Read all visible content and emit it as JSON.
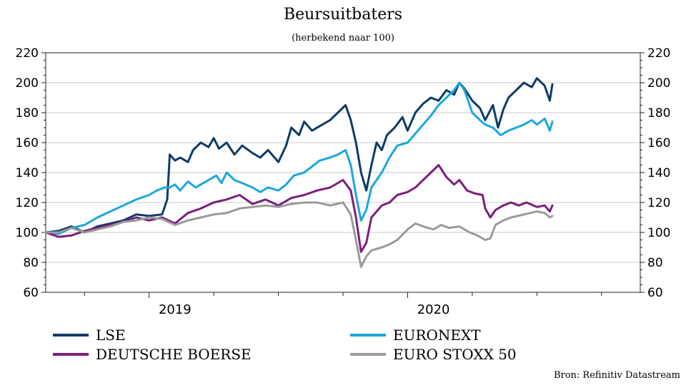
{
  "chart_data": {
    "type": "line",
    "title": "Beursuitbaters",
    "subtitle": "(herbekend naar 100)",
    "ylim": [
      60,
      220
    ],
    "yticks": [
      60,
      80,
      100,
      120,
      140,
      160,
      180,
      200,
      220
    ],
    "xlim": [
      2018.6,
      2020.9
    ],
    "xticks": [
      {
        "label": "2019",
        "x": 2019.0
      },
      {
        "label": "2020",
        "x": 2020.0
      }
    ],
    "x_minor": [
      2018.75,
      2019.0,
      2019.25,
      2019.5,
      2019.75,
      2020.0,
      2020.25,
      2020.5,
      2020.75
    ],
    "grid": true,
    "legend_position": "bottom",
    "source": "Bron: Refinitiv Datastream",
    "series": [
      {
        "name": "LSE",
        "color": "#0d3b66",
        "points": [
          [
            2018.6,
            100
          ],
          [
            2018.65,
            101
          ],
          [
            2018.7,
            104
          ],
          [
            2018.75,
            100
          ],
          [
            2018.8,
            104
          ],
          [
            2018.85,
            106
          ],
          [
            2018.9,
            108
          ],
          [
            2018.95,
            112
          ],
          [
            2019.0,
            111
          ],
          [
            2019.05,
            112
          ],
          [
            2019.07,
            122
          ],
          [
            2019.08,
            152
          ],
          [
            2019.1,
            148
          ],
          [
            2019.12,
            150
          ],
          [
            2019.15,
            147
          ],
          [
            2019.17,
            155
          ],
          [
            2019.2,
            160
          ],
          [
            2019.23,
            157
          ],
          [
            2019.25,
            163
          ],
          [
            2019.27,
            156
          ],
          [
            2019.3,
            160
          ],
          [
            2019.33,
            152
          ],
          [
            2019.36,
            158
          ],
          [
            2019.4,
            153
          ],
          [
            2019.43,
            150
          ],
          [
            2019.46,
            155
          ],
          [
            2019.5,
            147
          ],
          [
            2019.53,
            158
          ],
          [
            2019.55,
            170
          ],
          [
            2019.58,
            165
          ],
          [
            2019.6,
            174
          ],
          [
            2019.63,
            168
          ],
          [
            2019.66,
            171
          ],
          [
            2019.7,
            175
          ],
          [
            2019.73,
            180
          ],
          [
            2019.76,
            185
          ],
          [
            2019.78,
            175
          ],
          [
            2019.8,
            160
          ],
          [
            2019.82,
            140
          ],
          [
            2019.84,
            128
          ],
          [
            2019.86,
            145
          ],
          [
            2019.88,
            160
          ],
          [
            2019.9,
            155
          ],
          [
            2019.92,
            165
          ],
          [
            2019.95,
            170
          ],
          [
            2019.98,
            177
          ],
          [
            2020.0,
            168
          ],
          [
            2020.03,
            180
          ],
          [
            2020.06,
            186
          ],
          [
            2020.09,
            190
          ],
          [
            2020.12,
            188
          ],
          [
            2020.15,
            195
          ],
          [
            2020.18,
            192
          ],
          [
            2020.2,
            200
          ],
          [
            2020.22,
            196
          ],
          [
            2020.25,
            188
          ],
          [
            2020.28,
            183
          ],
          [
            2020.3,
            175
          ],
          [
            2020.33,
            185
          ],
          [
            2020.35,
            170
          ],
          [
            2020.37,
            182
          ],
          [
            2020.39,
            190
          ],
          [
            2020.42,
            195
          ],
          [
            2020.45,
            200
          ],
          [
            2020.48,
            197
          ],
          [
            2020.5,
            203
          ],
          [
            2020.53,
            198
          ],
          [
            2020.55,
            188
          ],
          [
            2020.56,
            199
          ]
        ]
      },
      {
        "name": "EURONEXT",
        "color": "#1aa7dd",
        "points": [
          [
            2018.6,
            100
          ],
          [
            2018.65,
            99
          ],
          [
            2018.7,
            103
          ],
          [
            2018.75,
            105
          ],
          [
            2018.8,
            110
          ],
          [
            2018.85,
            114
          ],
          [
            2018.9,
            118
          ],
          [
            2018.95,
            122
          ],
          [
            2019.0,
            125
          ],
          [
            2019.03,
            128
          ],
          [
            2019.06,
            130
          ],
          [
            2019.08,
            130
          ],
          [
            2019.1,
            132
          ],
          [
            2019.12,
            128
          ],
          [
            2019.15,
            134
          ],
          [
            2019.18,
            130
          ],
          [
            2019.2,
            132
          ],
          [
            2019.23,
            135
          ],
          [
            2019.26,
            138
          ],
          [
            2019.28,
            133
          ],
          [
            2019.3,
            140
          ],
          [
            2019.33,
            135
          ],
          [
            2019.36,
            133
          ],
          [
            2019.4,
            130
          ],
          [
            2019.43,
            127
          ],
          [
            2019.46,
            130
          ],
          [
            2019.5,
            128
          ],
          [
            2019.53,
            132
          ],
          [
            2019.56,
            138
          ],
          [
            2019.6,
            140
          ],
          [
            2019.63,
            144
          ],
          [
            2019.66,
            148
          ],
          [
            2019.7,
            150
          ],
          [
            2019.73,
            152
          ],
          [
            2019.76,
            155
          ],
          [
            2019.78,
            145
          ],
          [
            2019.8,
            125
          ],
          [
            2019.82,
            108
          ],
          [
            2019.84,
            115
          ],
          [
            2019.86,
            130
          ],
          [
            2019.88,
            135
          ],
          [
            2019.9,
            140
          ],
          [
            2019.93,
            150
          ],
          [
            2019.96,
            158
          ],
          [
            2020.0,
            160
          ],
          [
            2020.03,
            166
          ],
          [
            2020.06,
            172
          ],
          [
            2020.09,
            178
          ],
          [
            2020.12,
            185
          ],
          [
            2020.15,
            190
          ],
          [
            2020.18,
            195
          ],
          [
            2020.2,
            200
          ],
          [
            2020.22,
            195
          ],
          [
            2020.25,
            180
          ],
          [
            2020.28,
            175
          ],
          [
            2020.3,
            172
          ],
          [
            2020.33,
            170
          ],
          [
            2020.36,
            165
          ],
          [
            2020.39,
            168
          ],
          [
            2020.42,
            170
          ],
          [
            2020.45,
            172
          ],
          [
            2020.48,
            175
          ],
          [
            2020.5,
            172
          ],
          [
            2020.53,
            176
          ],
          [
            2020.55,
            168
          ],
          [
            2020.56,
            174
          ]
        ]
      },
      {
        "name": "DEUTSCHE BOERSE",
        "color": "#7b1f7e",
        "points": [
          [
            2018.6,
            100
          ],
          [
            2018.65,
            97
          ],
          [
            2018.7,
            98
          ],
          [
            2018.75,
            101
          ],
          [
            2018.8,
            103
          ],
          [
            2018.85,
            105
          ],
          [
            2018.9,
            107
          ],
          [
            2018.95,
            110
          ],
          [
            2019.0,
            108
          ],
          [
            2019.05,
            110
          ],
          [
            2019.1,
            106
          ],
          [
            2019.15,
            113
          ],
          [
            2019.2,
            116
          ],
          [
            2019.25,
            120
          ],
          [
            2019.3,
            122
          ],
          [
            2019.35,
            125
          ],
          [
            2019.4,
            119
          ],
          [
            2019.45,
            122
          ],
          [
            2019.5,
            118
          ],
          [
            2019.55,
            123
          ],
          [
            2019.6,
            125
          ],
          [
            2019.65,
            128
          ],
          [
            2019.7,
            130
          ],
          [
            2019.75,
            135
          ],
          [
            2019.78,
            128
          ],
          [
            2019.8,
            110
          ],
          [
            2019.82,
            87
          ],
          [
            2019.84,
            93
          ],
          [
            2019.86,
            110
          ],
          [
            2019.9,
            118
          ],
          [
            2019.93,
            120
          ],
          [
            2019.96,
            125
          ],
          [
            2020.0,
            127
          ],
          [
            2020.03,
            130
          ],
          [
            2020.06,
            135
          ],
          [
            2020.09,
            140
          ],
          [
            2020.12,
            145
          ],
          [
            2020.15,
            137
          ],
          [
            2020.18,
            132
          ],
          [
            2020.2,
            135
          ],
          [
            2020.23,
            128
          ],
          [
            2020.26,
            126
          ],
          [
            2020.29,
            125
          ],
          [
            2020.3,
            116
          ],
          [
            2020.32,
            110
          ],
          [
            2020.34,
            115
          ],
          [
            2020.37,
            118
          ],
          [
            2020.4,
            120
          ],
          [
            2020.43,
            118
          ],
          [
            2020.46,
            120
          ],
          [
            2020.5,
            117
          ],
          [
            2020.53,
            118
          ],
          [
            2020.55,
            114
          ],
          [
            2020.56,
            118
          ]
        ]
      },
      {
        "name": "EURO STOXX 50",
        "color": "#9a9a9a",
        "points": [
          [
            2018.6,
            100
          ],
          [
            2018.65,
            100
          ],
          [
            2018.7,
            103
          ],
          [
            2018.75,
            100
          ],
          [
            2018.8,
            102
          ],
          [
            2018.85,
            104
          ],
          [
            2018.9,
            107
          ],
          [
            2018.95,
            108
          ],
          [
            2019.0,
            110
          ],
          [
            2019.05,
            109
          ],
          [
            2019.1,
            105
          ],
          [
            2019.15,
            108
          ],
          [
            2019.2,
            110
          ],
          [
            2019.25,
            112
          ],
          [
            2019.3,
            113
          ],
          [
            2019.35,
            116
          ],
          [
            2019.4,
            117
          ],
          [
            2019.45,
            118
          ],
          [
            2019.5,
            117
          ],
          [
            2019.55,
            119
          ],
          [
            2019.6,
            120
          ],
          [
            2019.65,
            120
          ],
          [
            2019.7,
            118
          ],
          [
            2019.75,
            120
          ],
          [
            2019.78,
            112
          ],
          [
            2019.8,
            95
          ],
          [
            2019.82,
            77
          ],
          [
            2019.84,
            84
          ],
          [
            2019.86,
            88
          ],
          [
            2019.9,
            90
          ],
          [
            2019.93,
            92
          ],
          [
            2019.96,
            95
          ],
          [
            2020.0,
            102
          ],
          [
            2020.03,
            106
          ],
          [
            2020.06,
            104
          ],
          [
            2020.1,
            102
          ],
          [
            2020.13,
            105
          ],
          [
            2020.16,
            103
          ],
          [
            2020.2,
            104
          ],
          [
            2020.24,
            100
          ],
          [
            2020.27,
            98
          ],
          [
            2020.3,
            95
          ],
          [
            2020.32,
            96
          ],
          [
            2020.34,
            105
          ],
          [
            2020.37,
            108
          ],
          [
            2020.4,
            110
          ],
          [
            2020.45,
            112
          ],
          [
            2020.5,
            114
          ],
          [
            2020.53,
            113
          ],
          [
            2020.55,
            110
          ],
          [
            2020.56,
            111
          ]
        ]
      }
    ]
  }
}
